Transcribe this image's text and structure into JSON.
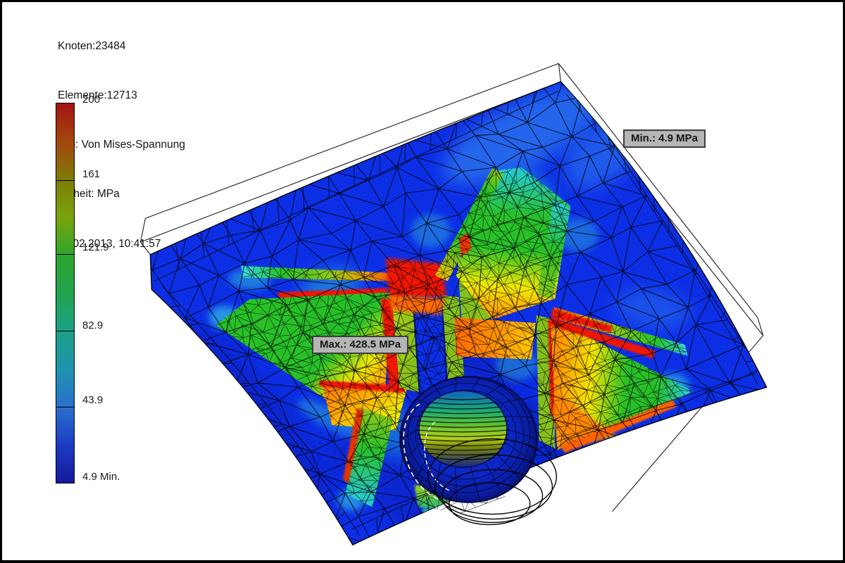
{
  "header": {
    "lines": [
      "Knoten:23484",
      "Elemente:12713",
      "Typ: Von Mises-Spannung",
      "Einheit: MPa",
      "26.02.2013, 10:41:57"
    ]
  },
  "scale": {
    "labels": [
      "200",
      "161",
      "121.9",
      "82.9",
      "43.9",
      "4.9 Min."
    ],
    "gradient": [
      "#a31312",
      "#a3470e",
      "#7f7b06",
      "#7aa40c",
      "#2ea52e",
      "#23a44c",
      "#1ca189",
      "#1f93ae",
      "#2a70cc",
      "#1d3cc2",
      "#13199c"
    ]
  },
  "annotations": {
    "min_label": "Min.: 4.9 MPa",
    "max_label": "Max.: 428.5 MPa"
  },
  "model_colors": {
    "blue": "#0c2fe6",
    "deep_blue": "#0a1cb4",
    "navy": "#041482",
    "cyan": "#38d8e8",
    "light_blue": "#3e9cf2",
    "green": "#28c028",
    "yellow_green": "#a6c816",
    "yellow": "#f0e800",
    "orange": "#ff9000",
    "red": "#f01800",
    "mesh_line": "#000000",
    "wire_line": "#1a1a1a",
    "probe_bg": "#b5b5b5",
    "probe_border": "#3c3c3c"
  }
}
